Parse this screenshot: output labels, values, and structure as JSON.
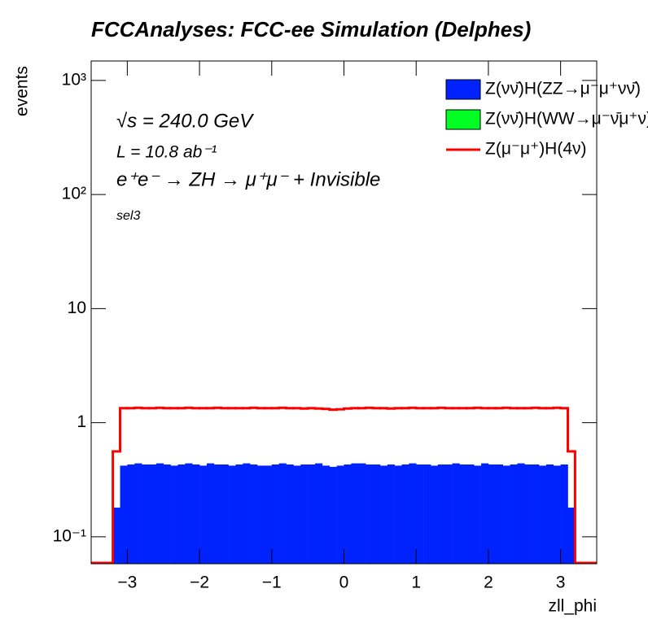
{
  "chart_data": {
    "type": "histogram",
    "title": "FCCAnalyses: FCC-ee Simulation (Delphes)",
    "x_label": "zll_phi",
    "y_label": "events",
    "annotations": [
      "√s = 240.0 GeV",
      "L = 10.8 ab⁻¹",
      "e⁺e⁻ → ZH → μ⁺μ⁻ + Invisible",
      "sel3"
    ],
    "log_y": true,
    "legend": "upper right",
    "xlim": [
      -3.5,
      3.5
    ],
    "ylim": [
      0.058,
      1480
    ],
    "xticks": [
      {
        "value": -3,
        "label": "−3"
      },
      {
        "value": -2,
        "label": "−2"
      },
      {
        "value": -1,
        "label": "−1"
      },
      0,
      1,
      2,
      3
    ],
    "yticks": [
      {
        "value": 0.1,
        "label": "10⁻¹"
      },
      1,
      10,
      {
        "value": 100,
        "label": "10²"
      },
      {
        "value": 1000,
        "label": "10³"
      }
    ],
    "bins": [
      -3.2,
      -3.1,
      -3.0,
      -2.9,
      -2.8,
      -2.7,
      -2.6,
      -2.5,
      -2.4,
      -2.3,
      -2.2,
      -2.1,
      -2.0,
      -1.9,
      -1.8,
      -1.7,
      -1.6,
      -1.5,
      -1.4,
      -1.3,
      -1.2,
      -1.1,
      -1.0,
      -0.9,
      -0.8,
      -0.7,
      -0.6,
      -0.5,
      -0.4,
      -0.3,
      -0.2,
      -0.1,
      0,
      0.1,
      0.2,
      0.3,
      0.4,
      0.5,
      0.6,
      0.7,
      0.8,
      0.9,
      1.0,
      1.1,
      1.2,
      1.3,
      1.4,
      1.5,
      1.6,
      1.7,
      1.8,
      1.9,
      2.0,
      2.1,
      2.2,
      2.3,
      2.4,
      2.5,
      2.6,
      2.7,
      2.8,
      2.9,
      3.0,
      3.1,
      3.2
    ],
    "series": [
      {
        "name": "Z(νν̄)H(ZZ→μ⁻μ⁺νν̄)",
        "color": "#0022ff",
        "style": "stacked",
        "values": [
          0.18,
          0.42,
          0.43,
          0.44,
          0.43,
          0.43,
          0.44,
          0.43,
          0.42,
          0.43,
          0.44,
          0.43,
          0.42,
          0.44,
          0.43,
          0.43,
          0.42,
          0.43,
          0.44,
          0.43,
          0.42,
          0.42,
          0.43,
          0.44,
          0.43,
          0.42,
          0.43,
          0.43,
          0.44,
          0.42,
          0.41,
          0.42,
          0.43,
          0.44,
          0.44,
          0.43,
          0.43,
          0.42,
          0.43,
          0.42,
          0.43,
          0.44,
          0.43,
          0.43,
          0.42,
          0.43,
          0.43,
          0.44,
          0.43,
          0.43,
          0.42,
          0.44,
          0.43,
          0.43,
          0.42,
          0.43,
          0.44,
          0.43,
          0.43,
          0.42,
          0.43,
          0.42,
          0.43,
          0.18
        ]
      },
      {
        "name": "Z(νν̄)H(WW→μ⁻ν̄μ⁺ν)",
        "color": "#00ff22",
        "style": "stacked",
        "values": [
          0,
          0,
          0,
          0,
          0,
          0,
          0,
          0,
          0,
          0,
          0,
          0,
          0,
          0,
          0,
          0,
          0,
          0,
          0,
          0,
          0,
          0,
          0,
          0,
          0,
          0,
          0,
          0,
          0,
          0,
          0,
          0,
          0,
          0,
          0,
          0,
          0,
          0,
          0,
          0,
          0,
          0,
          0,
          0,
          0,
          0,
          0,
          0,
          0,
          0,
          0,
          0,
          0,
          0,
          0,
          0,
          0,
          0,
          0,
          0,
          0,
          0,
          0,
          0
        ]
      },
      {
        "name": "Z(μ⁻μ⁺)H(4ν)",
        "color": "#ff0000",
        "style": "step",
        "values": [
          0.56,
          1.34,
          1.34,
          1.35,
          1.34,
          1.34,
          1.35,
          1.34,
          1.34,
          1.34,
          1.35,
          1.34,
          1.34,
          1.34,
          1.35,
          1.34,
          1.34,
          1.34,
          1.34,
          1.35,
          1.34,
          1.34,
          1.34,
          1.35,
          1.34,
          1.34,
          1.33,
          1.34,
          1.33,
          1.32,
          1.3,
          1.31,
          1.33,
          1.34,
          1.34,
          1.35,
          1.34,
          1.34,
          1.33,
          1.34,
          1.34,
          1.35,
          1.34,
          1.34,
          1.34,
          1.35,
          1.34,
          1.34,
          1.34,
          1.34,
          1.35,
          1.34,
          1.34,
          1.34,
          1.35,
          1.34,
          1.34,
          1.34,
          1.35,
          1.34,
          1.34,
          1.35,
          1.34,
          0.56
        ]
      }
    ]
  }
}
